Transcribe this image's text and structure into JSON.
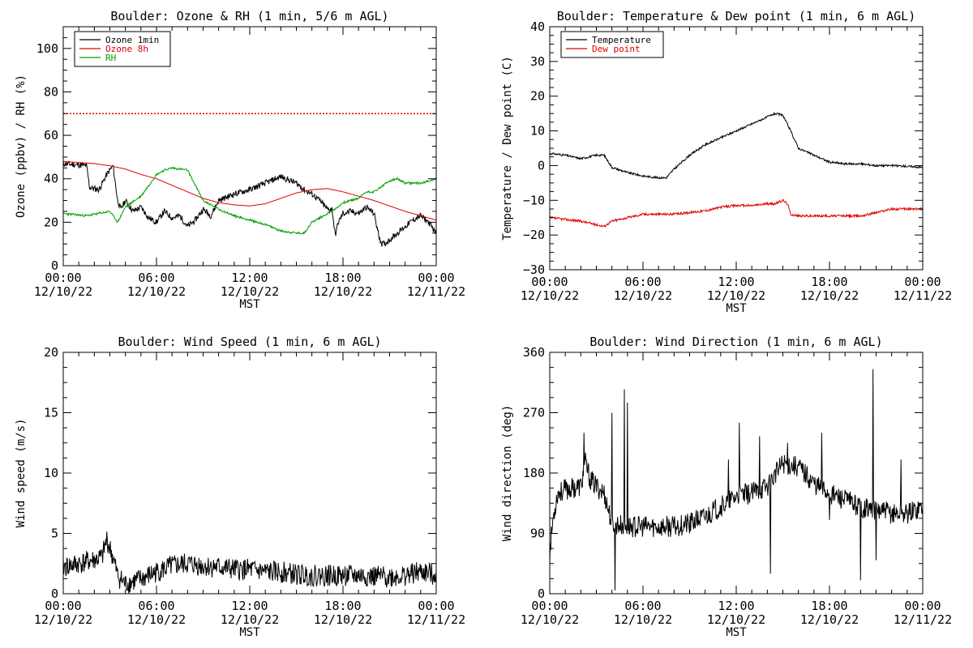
{
  "figure": {
    "background": "#ffffff",
    "foreground": "#000000"
  },
  "chart_data": [
    {
      "type": "line",
      "id": "ozone",
      "title": "Boulder: Ozone & RH (1 min, 5/6 m AGL)",
      "xlabel": "MST",
      "ylabel": "Ozone (ppbv) / RH (%)",
      "xlim_hours": [
        0,
        24
      ],
      "ylim": [
        0,
        110
      ],
      "yticks": [
        0,
        20,
        40,
        60,
        80,
        100
      ],
      "ytick_labels": [
        "0",
        "20",
        "40",
        "60",
        "80",
        "100"
      ],
      "x_tick_hours": [
        0,
        6,
        12,
        18,
        24
      ],
      "x_tick_times": [
        "00:00",
        "06:00",
        "12:00",
        "18:00",
        "00:00"
      ],
      "x_tick_dates": [
        "12/10/22",
        "12/10/22",
        "12/10/22",
        "12/10/22",
        "12/11/22"
      ],
      "grid": false,
      "legend": {
        "position": "top-left",
        "entries": [
          {
            "label": "Ozone 1min",
            "color": "#000000"
          },
          {
            "label": "Ozone 8h",
            "color": "#dd0000"
          },
          {
            "label": "RH",
            "color": "#00a000"
          }
        ]
      },
      "reference_lines": [
        {
          "y": 70,
          "color": "#dd0000",
          "style": "dotted"
        }
      ],
      "series": [
        {
          "name": "Ozone 1min",
          "color": "#000000",
          "noise": 1.4,
          "seed": 11,
          "x": [
            0,
            1.5,
            1.7,
            2.3,
            2.8,
            3.2,
            3.5,
            3.7,
            4.0,
            4.5,
            5.0,
            5.5,
            6.0,
            6.5,
            7.0,
            7.5,
            8.0,
            8.5,
            9.0,
            9.5,
            10.0,
            11.0,
            12.0,
            13.0,
            14.0,
            15.0,
            15.5,
            16.0,
            16.5,
            17.0,
            17.3,
            17.5,
            17.7,
            18.0,
            18.5,
            19.0,
            19.5,
            20.0,
            20.3,
            20.5,
            20.7,
            21.0,
            21.5,
            22.0,
            22.5,
            23.0,
            23.5,
            24.0
          ],
          "y": [
            47,
            46,
            36,
            35,
            42,
            46,
            30,
            26,
            30,
            25,
            27,
            22,
            20,
            25,
            22,
            23,
            18,
            21,
            26,
            23,
            30,
            33,
            35,
            38,
            41,
            38,
            35,
            33,
            30,
            26,
            26,
            14,
            20,
            24,
            25,
            24,
            27,
            24,
            14,
            10,
            10,
            12,
            15,
            18,
            21,
            23,
            20,
            15
          ]
        },
        {
          "name": "Ozone 8h",
          "color": "#dd0000",
          "noise": 0,
          "seed": 0,
          "x": [
            0,
            1,
            2,
            3,
            4,
            5,
            6,
            7,
            8,
            9,
            10,
            11,
            12,
            13,
            14,
            15,
            16,
            17,
            18,
            19,
            20,
            21,
            22,
            23,
            24
          ],
          "y": [
            48,
            47.5,
            47,
            46,
            44.5,
            42,
            40,
            37,
            34,
            31,
            29,
            28,
            27.5,
            28.5,
            31,
            33.5,
            35,
            35.5,
            34,
            32,
            30,
            27.5,
            25,
            23,
            21
          ]
        },
        {
          "name": "RH",
          "color": "#00a000",
          "noise": 0.5,
          "seed": 23,
          "x": [
            0,
            1.5,
            3.0,
            3.5,
            4.0,
            5.0,
            6.0,
            6.5,
            7.0,
            8.0,
            8.5,
            9.0,
            10.0,
            11.0,
            12.0,
            13.0,
            14.0,
            15.0,
            15.5,
            16.0,
            17.0,
            17.5,
            18.0,
            19.0,
            19.5,
            20.0,
            21.0,
            21.5,
            22.0,
            23.0,
            24.0
          ],
          "y": [
            24,
            23,
            25,
            20,
            27,
            32,
            42,
            44,
            45,
            44,
            37,
            30,
            26,
            23,
            21,
            19,
            16,
            15,
            15,
            20,
            24,
            26,
            29,
            31,
            34,
            34,
            39,
            40,
            38,
            38,
            40
          ]
        }
      ]
    },
    {
      "type": "line",
      "id": "temperature",
      "title": "Boulder: Temperature & Dew point (1 min, 6 m AGL)",
      "xlabel": "MST",
      "ylabel": "Temperature / Dew point (C)",
      "xlim_hours": [
        0,
        24
      ],
      "ylim": [
        -30,
        40
      ],
      "yticks": [
        -30,
        -20,
        -10,
        0,
        10,
        20,
        30,
        40
      ],
      "ytick_labels": [
        "−30",
        "−20",
        "−10",
        "0",
        "10",
        "20",
        "30",
        "40"
      ],
      "x_tick_hours": [
        0,
        6,
        12,
        18,
        24
      ],
      "x_tick_times": [
        "00:00",
        "06:00",
        "12:00",
        "18:00",
        "00:00"
      ],
      "x_tick_dates": [
        "12/10/22",
        "12/10/22",
        "12/10/22",
        "12/10/22",
        "12/11/22"
      ],
      "grid": false,
      "legend": {
        "position": "top-left",
        "entries": [
          {
            "label": "Temperature",
            "color": "#000000"
          },
          {
            "label": "Dew point",
            "color": "#dd0000"
          }
        ]
      },
      "reference_lines": [],
      "series": [
        {
          "name": "Temperature",
          "color": "#000000",
          "noise": 0.3,
          "seed": 31,
          "x": [
            0,
            1,
            2,
            3,
            3.5,
            4,
            5,
            6,
            7,
            7.5,
            8,
            9,
            10,
            11,
            12,
            13,
            14,
            14.5,
            15,
            15.5,
            16,
            17,
            18,
            19,
            20,
            21,
            22,
            23,
            24
          ],
          "y": [
            3.5,
            3,
            2,
            3,
            3,
            -0.5,
            -2,
            -3,
            -3.5,
            -3.5,
            -1,
            3,
            6,
            8,
            10,
            12,
            14,
            15,
            14.5,
            10,
            5,
            3,
            1,
            0.5,
            0.5,
            0,
            0,
            -0.2,
            -0.5
          ]
        },
        {
          "name": "Dew point",
          "color": "#dd0000",
          "noise": 0.35,
          "seed": 37,
          "x": [
            0,
            1,
            2,
            3,
            3.5,
            4,
            5,
            6,
            7,
            8,
            9,
            10,
            11,
            12,
            13,
            14,
            14.5,
            15,
            15.3,
            15.5,
            16,
            17,
            18,
            19,
            20,
            21,
            22,
            23,
            24
          ],
          "y": [
            -15,
            -15.5,
            -16,
            -17,
            -17.5,
            -16,
            -15,
            -14,
            -14,
            -14,
            -13.5,
            -13,
            -12,
            -11.5,
            -11.5,
            -11,
            -11,
            -10,
            -11,
            -14,
            -14.5,
            -14.5,
            -14.5,
            -14.5,
            -14.5,
            -13.5,
            -12.5,
            -12.5,
            -12.5
          ]
        }
      ]
    },
    {
      "type": "line",
      "id": "windspeed",
      "title": "Boulder: Wind Speed (1 min, 6 m AGL)",
      "xlabel": "MST",
      "ylabel": "Wind speed (m/s)",
      "xlim_hours": [
        0,
        24
      ],
      "ylim": [
        0,
        20
      ],
      "yticks": [
        0,
        5,
        10,
        15,
        20
      ],
      "ytick_labels": [
        "0",
        "5",
        "10",
        "15",
        "20"
      ],
      "x_tick_hours": [
        0,
        6,
        12,
        18,
        24
      ],
      "x_tick_times": [
        "00:00",
        "06:00",
        "12:00",
        "18:00",
        "00:00"
      ],
      "x_tick_dates": [
        "12/10/22",
        "12/10/22",
        "12/10/22",
        "12/10/22",
        "12/11/22"
      ],
      "grid": false,
      "reference_lines": [],
      "series": [
        {
          "color": "#000000",
          "noise": 0.9,
          "seed": 41,
          "x": [
            0,
            1,
            2,
            2.5,
            2.8,
            3.2,
            3.5,
            4.0,
            5.0,
            6.0,
            7.0,
            8.0,
            9.0,
            10.0,
            11.0,
            12.0,
            13.0,
            14.0,
            15.0,
            16.0,
            17.0,
            18.0,
            19.0,
            20.0,
            21.0,
            22.0,
            23.0,
            24.0
          ],
          "y": [
            2.2,
            2.5,
            2.8,
            3.0,
            4.5,
            3.0,
            1.5,
            0.8,
            1.2,
            1.8,
            2.3,
            2.5,
            2.3,
            2.2,
            2.0,
            2.0,
            1.8,
            1.8,
            1.6,
            1.5,
            1.5,
            1.5,
            1.5,
            1.4,
            1.4,
            1.5,
            1.8,
            1.6
          ]
        }
      ]
    },
    {
      "type": "line",
      "id": "winddir",
      "title": "Boulder: Wind Direction (1 min, 6 m AGL)",
      "xlabel": "MST",
      "ylabel": "Wind direction (deg)",
      "xlim_hours": [
        0,
        24
      ],
      "ylim": [
        0,
        360
      ],
      "yticks": [
        0,
        90,
        180,
        270,
        360
      ],
      "ytick_labels": [
        "0",
        "90",
        "180",
        "270",
        "360"
      ],
      "x_tick_hours": [
        0,
        6,
        12,
        18,
        24
      ],
      "x_tick_times": [
        "00:00",
        "06:00",
        "12:00",
        "18:00",
        "00:00"
      ],
      "x_tick_dates": [
        "12/10/22",
        "12/10/22",
        "12/10/22",
        "12/10/22",
        "12/11/22"
      ],
      "grid": false,
      "reference_lines": [],
      "series": [
        {
          "color": "#000000",
          "noise": 16,
          "seed": 53,
          "x": [
            0,
            0.2,
            0.5,
            1.0,
            2.0,
            2.3,
            2.6,
            3.0,
            3.5,
            4.0,
            5.0,
            6.0,
            7.0,
            8.0,
            9.0,
            10.0,
            11.0,
            12.0,
            13.0,
            14.0,
            15.0,
            16.0,
            17.0,
            18.0,
            19.0,
            20.0,
            21.0,
            22.0,
            23.0,
            24.0
          ],
          "y": [
            60,
            110,
            150,
            155,
            160,
            195,
            170,
            160,
            150,
            105,
            100,
            100,
            100,
            100,
            105,
            115,
            130,
            145,
            150,
            160,
            195,
            190,
            165,
            150,
            140,
            130,
            125,
            120,
            120,
            130
          ],
          "spikes": [
            [
              2.2,
              240
            ],
            [
              4.0,
              270
            ],
            [
              4.2,
              5
            ],
            [
              4.8,
              305
            ],
            [
              5.0,
              285
            ],
            [
              5.2,
              100
            ],
            [
              7.5,
              95
            ],
            [
              9.0,
              90
            ],
            [
              11.5,
              200
            ],
            [
              12.2,
              255
            ],
            [
              13.5,
              235
            ],
            [
              14.2,
              30
            ],
            [
              15.3,
              225
            ],
            [
              17.5,
              240
            ],
            [
              18.0,
              110
            ],
            [
              20.0,
              20
            ],
            [
              20.8,
              335
            ],
            [
              21.0,
              50
            ],
            [
              22.6,
              200
            ]
          ]
        }
      ]
    }
  ]
}
